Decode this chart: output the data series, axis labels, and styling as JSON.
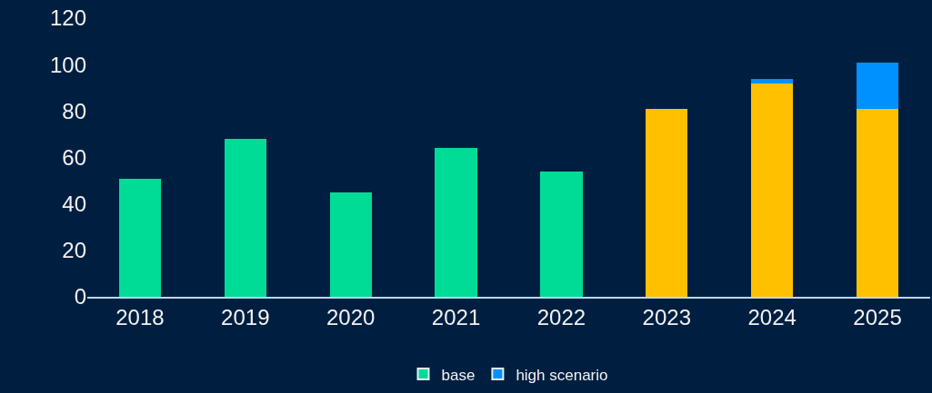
{
  "chart_data": {
    "type": "bar",
    "stacked": true,
    "categories": [
      "2018",
      "2019",
      "2020",
      "2021",
      "2022",
      "2023",
      "2024",
      "2025"
    ],
    "series": [
      {
        "name": "base",
        "color": "#00dc96",
        "colors": [
          "#00dc96",
          "#00dc96",
          "#00dc96",
          "#00dc96",
          "#00dc96",
          "#ffc000",
          "#ffc000",
          "#ffc000"
        ],
        "values": [
          51,
          68,
          45,
          64,
          54,
          81,
          92,
          81
        ]
      },
      {
        "name": "high scenario",
        "color": "#0091ff",
        "values": [
          null,
          null,
          null,
          null,
          null,
          null,
          2,
          20
        ]
      }
    ],
    "ylim": [
      0,
      120
    ],
    "yticks": [
      0,
      20,
      40,
      60,
      80,
      100,
      120
    ],
    "grid": false,
    "legend": "bottom"
  }
}
